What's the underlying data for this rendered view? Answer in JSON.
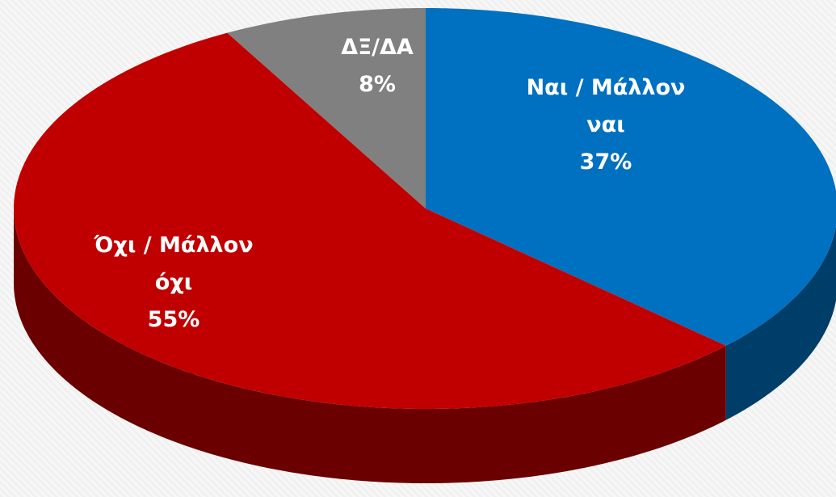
{
  "chart_data": {
    "type": "pie",
    "categories": [
      "Ναι / Μάλλον ναι",
      "Όχι / Μάλλον όχι",
      "ΔΞ/ΔΑ"
    ],
    "values": [
      37,
      55,
      8
    ],
    "value_labels": [
      "37%",
      "55%",
      "8%"
    ],
    "colors": [
      "#0070c0",
      "#c00000",
      "#808080"
    ]
  }
}
